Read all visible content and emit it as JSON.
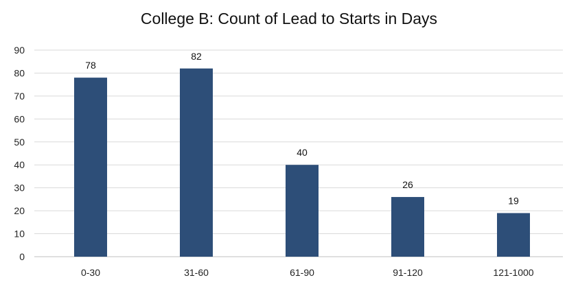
{
  "chart_data": {
    "type": "bar",
    "title": "College B:  Count of Lead to Starts in Days",
    "categories": [
      "0-30",
      "31-60",
      "61-90",
      "91-120",
      "121-1000"
    ],
    "values": [
      78,
      82,
      40,
      26,
      19
    ],
    "ylim": [
      0,
      90
    ],
    "yticks": [
      0,
      10,
      20,
      30,
      40,
      50,
      60,
      70,
      80,
      90
    ],
    "xlabel": "",
    "ylabel": "",
    "grid": true,
    "legend": "none",
    "bar_color": "#2d4e78",
    "gridline_color": "#d9d9d9"
  }
}
